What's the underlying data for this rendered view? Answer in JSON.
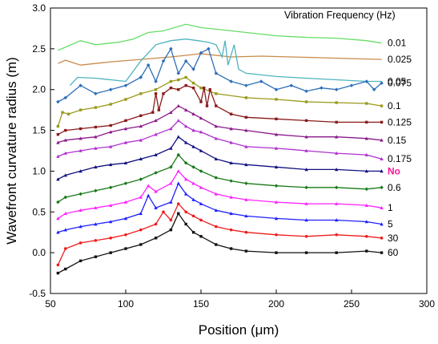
{
  "chart_data": {
    "type": "line",
    "xlabel": "Position (μm)",
    "ylabel": "Wavefront curvature radius (m)",
    "xlim": [
      50,
      300
    ],
    "ylim": [
      -0.5,
      3.0
    ],
    "x_ticks": [
      50,
      100,
      150,
      200,
      250,
      300
    ],
    "y_ticks": [
      -0.5,
      0.0,
      0.5,
      1.0,
      1.5,
      2.0,
      2.5,
      3.0
    ],
    "x_tick_labels": [
      "50",
      "100",
      "150",
      "200",
      "250",
      "300"
    ],
    "y_tick_labels": [
      "-0.5",
      "0.0",
      "0.5",
      "1.0",
      "1.5",
      "2.0",
      "2.5",
      "3.0"
    ],
    "legend_title": "Vibration Frequency (Hz)",
    "legend_placement": "right",
    "grid": false,
    "series": [
      {
        "name": "0.01",
        "color": "#66dd66",
        "marker": "none",
        "x": [
          55,
          70,
          80,
          95,
          105,
          115,
          125,
          140,
          150,
          160,
          180,
          200,
          220,
          240,
          260,
          270
        ],
        "y": [
          2.48,
          2.6,
          2.55,
          2.58,
          2.62,
          2.7,
          2.72,
          2.8,
          2.76,
          2.74,
          2.7,
          2.66,
          2.64,
          2.63,
          2.6,
          2.57
        ]
      },
      {
        "name": "0.025",
        "color": "#c98a4b",
        "marker": "none",
        "x": [
          55,
          60,
          70,
          90,
          110,
          130,
          150,
          170,
          190,
          210,
          230,
          250,
          270
        ],
        "y": [
          2.32,
          2.36,
          2.3,
          2.34,
          2.37,
          2.4,
          2.44,
          2.4,
          2.41,
          2.4,
          2.39,
          2.38,
          2.37
        ]
      },
      {
        "name": "0.05",
        "color": "#4fb3bf",
        "marker": "none",
        "x": [
          63,
          68,
          80,
          100,
          110,
          120,
          130,
          140,
          148,
          155,
          160,
          164,
          166,
          168,
          172,
          175,
          180,
          200,
          220,
          240,
          260,
          270
        ],
        "y": [
          2.05,
          2.15,
          2.14,
          2.1,
          2.35,
          2.55,
          2.6,
          2.62,
          2.6,
          2.58,
          2.55,
          2.4,
          2.6,
          2.3,
          2.55,
          2.25,
          2.2,
          2.16,
          2.14,
          2.12,
          2.1,
          2.1
        ]
      },
      {
        "name": "0.075",
        "color": "#2e6fb8",
        "marker": "diamond",
        "x": [
          55,
          60,
          70,
          80,
          90,
          100,
          110,
          115,
          120,
          125,
          130,
          135,
          140,
          145,
          150,
          155,
          160,
          170,
          180,
          190,
          200,
          210,
          220,
          230,
          240,
          250,
          260,
          265,
          270
        ],
        "y": [
          1.85,
          1.9,
          2.05,
          1.95,
          2.0,
          2.05,
          2.15,
          2.3,
          2.1,
          2.35,
          2.5,
          2.2,
          2.35,
          2.25,
          2.45,
          2.5,
          2.2,
          2.1,
          2.05,
          2.1,
          2.0,
          2.05,
          1.98,
          2.02,
          2.0,
          2.05,
          2.1,
          2.0,
          2.08
        ]
      },
      {
        "name": "0.1",
        "color": "#9a9a1a",
        "marker": "square",
        "x": [
          55,
          58,
          62,
          70,
          80,
          90,
          100,
          110,
          120,
          130,
          135,
          140,
          145,
          150,
          160,
          180,
          200,
          220,
          240,
          260,
          270
        ],
        "y": [
          1.55,
          1.72,
          1.7,
          1.75,
          1.78,
          1.82,
          1.88,
          1.95,
          2.0,
          2.1,
          2.12,
          2.15,
          2.08,
          2.02,
          1.95,
          1.9,
          1.88,
          1.85,
          1.84,
          1.83,
          1.8
        ]
      },
      {
        "name": "0.125",
        "color": "#8b1a1a",
        "marker": "square",
        "x": [
          55,
          60,
          70,
          80,
          90,
          100,
          110,
          118,
          120,
          122,
          125,
          130,
          135,
          140,
          145,
          150,
          152,
          154,
          156,
          160,
          170,
          180,
          200,
          220,
          240,
          260,
          270
        ],
        "y": [
          1.45,
          1.5,
          1.52,
          1.54,
          1.56,
          1.62,
          1.68,
          1.72,
          1.95,
          1.75,
          1.95,
          2.02,
          2.0,
          2.05,
          2.02,
          1.85,
          2.02,
          1.8,
          2.0,
          1.8,
          1.7,
          1.66,
          1.64,
          1.62,
          1.6,
          1.6,
          1.6
        ]
      },
      {
        "name": "0.15",
        "color": "#8b1a8b",
        "marker": "triangle",
        "x": [
          55,
          60,
          70,
          80,
          90,
          100,
          110,
          120,
          130,
          135,
          140,
          145,
          150,
          160,
          170,
          180,
          200,
          220,
          240,
          260,
          270
        ],
        "y": [
          1.35,
          1.38,
          1.4,
          1.42,
          1.48,
          1.52,
          1.55,
          1.62,
          1.72,
          1.8,
          1.75,
          1.7,
          1.65,
          1.55,
          1.52,
          1.5,
          1.45,
          1.42,
          1.42,
          1.4,
          1.38
        ]
      },
      {
        "name": "0.175",
        "color": "#b030d0",
        "marker": "triangle",
        "x": [
          55,
          60,
          70,
          80,
          90,
          100,
          110,
          120,
          130,
          135,
          140,
          145,
          150,
          160,
          170,
          180,
          200,
          220,
          240,
          260,
          270
        ],
        "y": [
          1.18,
          1.22,
          1.25,
          1.28,
          1.3,
          1.35,
          1.38,
          1.45,
          1.52,
          1.62,
          1.55,
          1.5,
          1.48,
          1.4,
          1.35,
          1.3,
          1.28,
          1.25,
          1.22,
          1.2,
          1.15
        ]
      },
      {
        "name": "No",
        "color": "#101080",
        "marker": "triangle",
        "x": [
          55,
          60,
          70,
          80,
          90,
          100,
          110,
          120,
          130,
          135,
          140,
          145,
          150,
          160,
          170,
          180,
          200,
          220,
          240,
          260,
          270
        ],
        "y": [
          0.9,
          0.95,
          1.0,
          1.05,
          1.08,
          1.1,
          1.15,
          1.2,
          1.28,
          1.42,
          1.35,
          1.3,
          1.25,
          1.15,
          1.1,
          1.08,
          1.05,
          1.02,
          1.02,
          1.0,
          1.0
        ]
      },
      {
        "name": "0.6",
        "color": "#1a7a1a",
        "marker": "diamond",
        "x": [
          55,
          60,
          70,
          80,
          90,
          100,
          110,
          120,
          130,
          135,
          140,
          145,
          150,
          160,
          170,
          180,
          200,
          220,
          240,
          260,
          270
        ],
        "y": [
          0.62,
          0.68,
          0.72,
          0.76,
          0.8,
          0.85,
          0.9,
          0.98,
          1.05,
          1.2,
          1.1,
          1.05,
          1.0,
          0.92,
          0.88,
          0.85,
          0.82,
          0.8,
          0.8,
          0.78,
          0.8
        ]
      },
      {
        "name": "1",
        "color": "#ff22ff",
        "marker": "triangle",
        "x": [
          55,
          60,
          70,
          80,
          90,
          100,
          110,
          115,
          120,
          130,
          135,
          140,
          145,
          150,
          160,
          170,
          180,
          200,
          220,
          240,
          260,
          270
        ],
        "y": [
          0.42,
          0.48,
          0.52,
          0.55,
          0.58,
          0.62,
          0.68,
          0.82,
          0.75,
          0.85,
          1.0,
          0.9,
          0.85,
          0.8,
          0.72,
          0.68,
          0.65,
          0.62,
          0.6,
          0.6,
          0.58,
          0.55
        ]
      },
      {
        "name": "5",
        "color": "#2020ff",
        "marker": "triangle",
        "x": [
          55,
          60,
          70,
          80,
          90,
          100,
          110,
          115,
          120,
          130,
          135,
          140,
          145,
          150,
          160,
          170,
          180,
          200,
          220,
          240,
          260,
          270
        ],
        "y": [
          0.25,
          0.28,
          0.32,
          0.35,
          0.38,
          0.42,
          0.48,
          0.7,
          0.55,
          0.62,
          0.85,
          0.72,
          0.65,
          0.6,
          0.52,
          0.48,
          0.45,
          0.42,
          0.4,
          0.4,
          0.38,
          0.35
        ]
      },
      {
        "name": "30",
        "color": "#ee1c1c",
        "marker": "circle",
        "x": [
          55,
          60,
          70,
          80,
          90,
          100,
          110,
          120,
          125,
          130,
          135,
          140,
          145,
          150,
          160,
          170,
          180,
          200,
          220,
          240,
          260,
          270
        ],
        "y": [
          -0.15,
          0.05,
          0.12,
          0.15,
          0.18,
          0.22,
          0.28,
          0.35,
          0.5,
          0.4,
          0.6,
          0.5,
          0.45,
          0.4,
          0.32,
          0.28,
          0.25,
          0.22,
          0.2,
          0.22,
          0.2,
          0.18
        ]
      },
      {
        "name": "60",
        "color": "#111111",
        "marker": "square",
        "x": [
          55,
          60,
          70,
          80,
          90,
          100,
          110,
          120,
          130,
          135,
          140,
          145,
          150,
          160,
          170,
          180,
          200,
          220,
          240,
          260,
          270
        ],
        "y": [
          -0.25,
          -0.2,
          -0.1,
          -0.05,
          0.0,
          0.05,
          0.1,
          0.18,
          0.28,
          0.48,
          0.35,
          0.25,
          0.2,
          0.1,
          0.05,
          0.02,
          0.0,
          0.0,
          0.0,
          0.02,
          0.0
        ]
      }
    ]
  }
}
